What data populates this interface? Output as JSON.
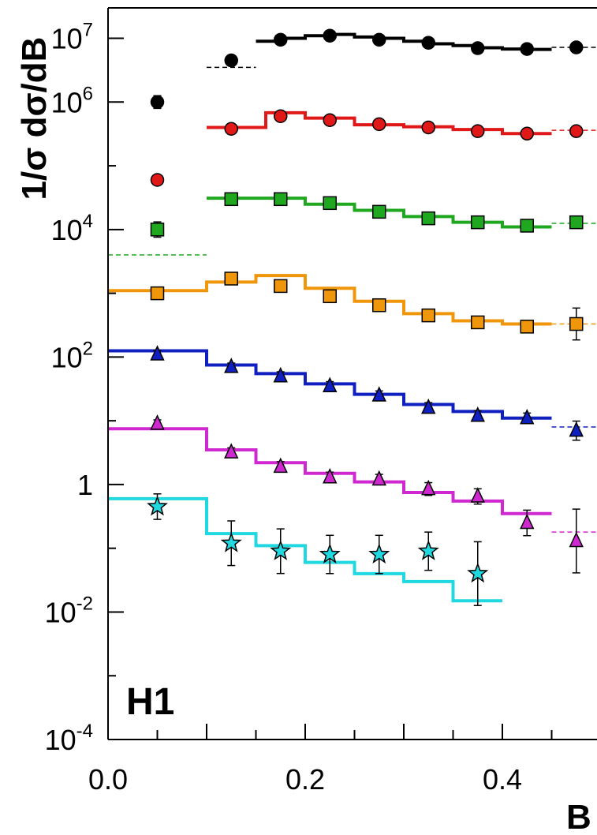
{
  "chart_data": {
    "type": "scatter",
    "xlabel": "B",
    "ylabel": "1/σ dσ/dB",
    "xlim": [
      0.0,
      0.5
    ],
    "ylim": [
      0.0001,
      30000000
    ],
    "yscale": "log",
    "grid": false,
    "logo": "H1",
    "x_ticks": [
      {
        "value": 0.0,
        "label": "0.0"
      },
      {
        "value": 0.2,
        "label": "0.2"
      },
      {
        "value": 0.4,
        "label": "0.4"
      }
    ],
    "y_ticks": [
      {
        "value": 0.0001,
        "base": "10",
        "exp": "-4"
      },
      {
        "value": 0.01,
        "base": "10",
        "exp": "-2"
      },
      {
        "value": 1,
        "base": "1",
        "exp": ""
      },
      {
        "value": 100,
        "base": "10",
        "exp": "2"
      },
      {
        "value": 10000,
        "base": "10",
        "exp": "4"
      },
      {
        "value": 1000000,
        "base": "10",
        "exp": "6"
      },
      {
        "value": 10000000,
        "base": "10",
        "exp": "7"
      }
    ],
    "bin_centers": [
      0.05,
      0.125,
      0.175,
      0.225,
      0.275,
      0.325,
      0.375,
      0.425,
      0.475
    ],
    "series": [
      {
        "color": "#000000",
        "marker": "circle",
        "values": [
          1000000,
          4500000,
          9500000,
          11000000,
          9500000,
          8500000,
          7000000,
          6800000,
          7200000
        ],
        "errors": [
          0.1,
          0.07,
          0.04,
          0.04,
          0.04,
          0.04,
          0.04,
          0.04,
          0.04
        ],
        "curve": {
          "dashed_edges": [
            0.1,
            0.15
          ],
          "dashed_values": [
            3500000
          ],
          "edges": [
            0.15,
            0.175,
            0.2,
            0.225,
            0.25,
            0.275,
            0.3,
            0.325,
            0.35,
            0.375,
            0.4,
            0.425,
            0.45
          ],
          "values": [
            9000000,
            10000000,
            11000000,
            11500000,
            10500000,
            10000000,
            9000000,
            8200000,
            7700000,
            7100000,
            6800000,
            6700000
          ],
          "tail_edges": [
            0.45,
            0.5
          ],
          "tail_values": [
            7200000
          ]
        }
      },
      {
        "color": "#e01818",
        "marker": "circle",
        "values": [
          60000,
          380000,
          600000,
          520000,
          450000,
          400000,
          350000,
          320000,
          350000
        ],
        "errors": [
          0.06,
          0.06,
          0.04,
          0.04,
          0.04,
          0.04,
          0.04,
          0.04,
          0.04
        ],
        "curve": {
          "edges": [
            0.1,
            0.15,
            0.16,
            0.2,
            0.25,
            0.3,
            0.35,
            0.4,
            0.45
          ],
          "values": [
            400000,
            400000,
            680000,
            560000,
            440000,
            410000,
            370000,
            320000
          ],
          "tail_edges": [
            0.45,
            0.5
          ],
          "tail_values": [
            360000
          ]
        }
      },
      {
        "color": "#1fa81f",
        "marker": "square",
        "values": [
          10000,
          30000,
          30000,
          26000,
          19000,
          15000,
          13000,
          11500,
          13000
        ],
        "errors": [
          0.12,
          0.05,
          0.05,
          0.05,
          0.05,
          0.05,
          0.05,
          0.05,
          0.08
        ],
        "curve": {
          "dashed_edges": [
            0.0,
            0.1
          ],
          "dashed_values": [
            4000
          ],
          "edges": [
            0.1,
            0.15,
            0.2,
            0.25,
            0.3,
            0.35,
            0.4,
            0.45
          ],
          "values": [
            31000,
            31000,
            25000,
            20000,
            16000,
            13000,
            11000
          ],
          "tail_edges": [
            0.45,
            0.5
          ],
          "tail_values": [
            12500
          ]
        }
      },
      {
        "color": "#f0960a",
        "marker": "square",
        "values": [
          1000,
          1700,
          1300,
          900,
          650,
          450,
          350,
          300,
          330
        ],
        "errors": [
          0.06,
          0.05,
          0.05,
          0.05,
          0.05,
          0.08,
          0.08,
          0.08,
          0.25
        ],
        "curve": {
          "edges": [
            0.0,
            0.1,
            0.15,
            0.2,
            0.25,
            0.3,
            0.35,
            0.4,
            0.45
          ],
          "values": [
            1100,
            1500,
            1900,
            1200,
            750,
            480,
            370,
            330
          ],
          "tail_edges": [
            0.45,
            0.5
          ],
          "tail_values": [
            330
          ]
        }
      },
      {
        "color": "#1020c0",
        "marker": "triangle",
        "values": [
          110,
          70,
          50,
          35,
          25,
          16,
          12,
          11,
          7
        ],
        "errors": [
          0.06,
          0.06,
          0.07,
          0.07,
          0.07,
          0.08,
          0.08,
          0.08,
          0.15
        ],
        "curve": {
          "edges": [
            0.0,
            0.1,
            0.15,
            0.2,
            0.25,
            0.3,
            0.35,
            0.4,
            0.45
          ],
          "values": [
            125,
            75,
            55,
            38,
            26,
            18,
            14,
            11
          ],
          "tail_edges": [
            0.45,
            0.5
          ],
          "tail_values": [
            8
          ]
        }
      },
      {
        "color": "#d028d0",
        "marker": "triangle",
        "values": [
          9,
          3.2,
          1.9,
          1.3,
          1.2,
          0.85,
          0.65,
          0.25,
          0.13
        ],
        "errors": [
          0.06,
          0.07,
          0.08,
          0.08,
          0.08,
          0.1,
          0.12,
          0.2,
          0.5
        ],
        "curve": {
          "edges": [
            0.0,
            0.1,
            0.15,
            0.2,
            0.25,
            0.3,
            0.35,
            0.4,
            0.45
          ],
          "values": [
            7.5,
            3.5,
            2.2,
            1.5,
            1.1,
            0.75,
            0.55,
            0.35
          ],
          "tail_edges": [
            0.45,
            0.5
          ],
          "tail_values": [
            0.18
          ]
        }
      },
      {
        "color": "#20d8e0",
        "marker": "star",
        "values": [
          0.45,
          0.12,
          0.09,
          0.08,
          0.08,
          0.09,
          0.04
        ],
        "errors": [
          0.2,
          0.35,
          0.35,
          0.3,
          0.3,
          0.3,
          0.5
        ],
        "curve": {
          "edges": [
            0.0,
            0.1,
            0.15,
            0.2,
            0.25,
            0.3,
            0.35,
            0.4
          ],
          "values": [
            0.6,
            0.17,
            0.11,
            0.06,
            0.04,
            0.03,
            0.015
          ]
        }
      }
    ]
  }
}
